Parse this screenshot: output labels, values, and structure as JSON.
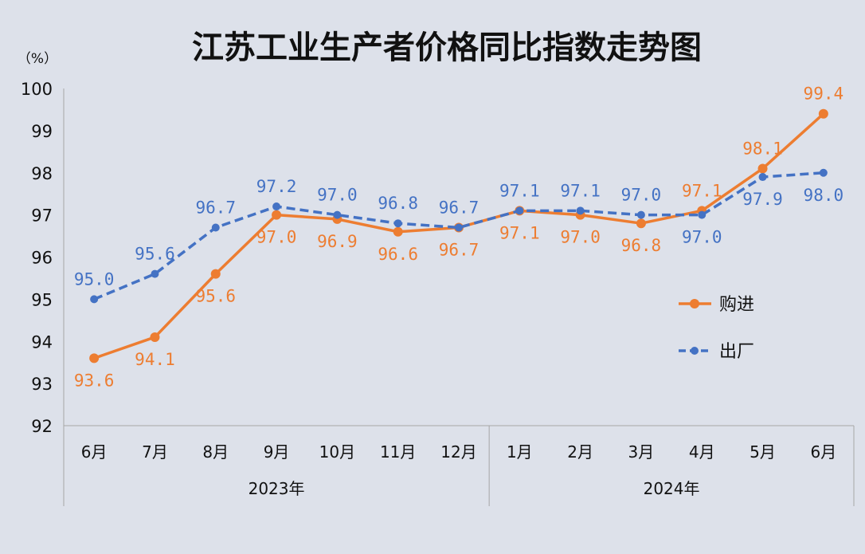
{
  "chart_data": {
    "type": "line",
    "title": "江苏工业生产者价格同比指数走势图",
    "unit_label": "（%）",
    "categories": [
      "6月",
      "7月",
      "8月",
      "9月",
      "10月",
      "11月",
      "12月",
      "1月",
      "2月",
      "3月",
      "4月",
      "5月",
      "6月"
    ],
    "year_groups": [
      {
        "label": "2023年",
        "start": 0,
        "end": 6
      },
      {
        "label": "2024年",
        "start": 7,
        "end": 12
      }
    ],
    "ylim": [
      92,
      100
    ],
    "yticks": [
      92,
      93,
      94,
      95,
      96,
      97,
      98,
      99,
      100
    ],
    "series": [
      {
        "name": "购进",
        "color": "#ed7d31",
        "dash": false,
        "values": [
          93.6,
          94.1,
          95.6,
          97.0,
          96.9,
          96.6,
          96.7,
          97.1,
          97.0,
          96.8,
          97.1,
          98.1,
          99.4
        ],
        "labels": [
          "93.6",
          "94.1",
          "95.6",
          "97.0",
          "96.9",
          "96.6",
          "96.7",
          "97.1",
          "97.0",
          "96.8",
          "97.1",
          "98.1",
          "99.4"
        ]
      },
      {
        "name": "出厂",
        "color": "#4472c4",
        "dash": true,
        "values": [
          95.0,
          95.6,
          96.7,
          97.2,
          97.0,
          96.8,
          96.7,
          97.1,
          97.1,
          97.0,
          97.0,
          97.9,
          98.0
        ],
        "labels": [
          "95.0",
          "95.6",
          "96.7",
          "97.2",
          "97.0",
          "96.8",
          "96.7",
          "97.1",
          "97.1",
          "97.0",
          "97.0",
          "97.9",
          "98.0"
        ]
      }
    ],
    "grid": false,
    "legend_position": "right"
  }
}
